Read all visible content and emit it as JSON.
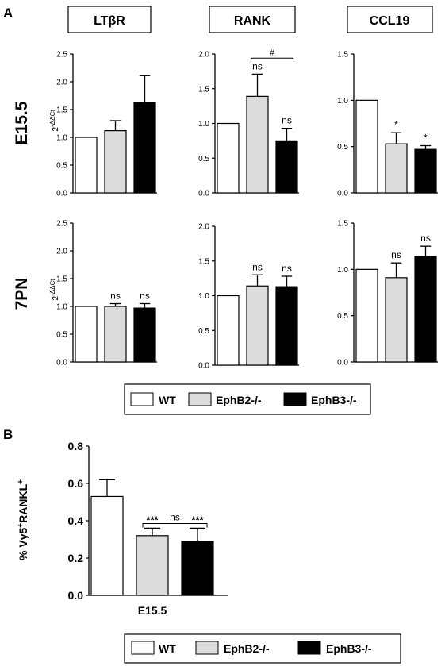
{
  "panel_labels": [
    "A",
    "B"
  ],
  "row_labels": [
    "E15.5",
    "7PN"
  ],
  "column_headers": [
    "LTβR",
    "RANK",
    "CCL19"
  ],
  "ylabel_A": "2-ΔΔCt",
  "ylabel_A_base": "2",
  "ylabel_A_sup": "-ΔΔCt",
  "legend": {
    "wt": "WT",
    "ephb2": "EphB2-/-",
    "ephb3": "EphB3-/-"
  },
  "colors": {
    "wt": "#ffffff",
    "ephb2": "#dcdcdc",
    "ephb3": "#000000"
  },
  "chart_data": [
    {
      "id": "A-E15.5-LTbR",
      "type": "bar",
      "categories": [
        "WT",
        "EphB2-/-",
        "EphB3-/-"
      ],
      "values": [
        1.0,
        1.12,
        1.63
      ],
      "errors": [
        0,
        0.18,
        0.48
      ],
      "ylim": [
        0,
        2.5
      ],
      "yticks": [
        0.0,
        0.5,
        1.0,
        1.5,
        2.0,
        2.5
      ],
      "ylabel": "2-ΔΔCt",
      "annotations": [
        "",
        "",
        ""
      ],
      "bracket": null
    },
    {
      "id": "A-E15.5-RANK",
      "type": "bar",
      "categories": [
        "WT",
        "EphB2-/-",
        "EphB3-/-"
      ],
      "values": [
        1.0,
        1.39,
        0.75
      ],
      "errors": [
        0,
        0.32,
        0.18
      ],
      "ylim": [
        0,
        2.0
      ],
      "yticks": [
        0.0,
        0.5,
        1.0,
        1.5,
        2.0
      ],
      "ylabel": "",
      "annotations": [
        "",
        "ns",
        "ns"
      ],
      "bracket": {
        "from": 1,
        "to": 2,
        "y": 1.94,
        "label": "#"
      }
    },
    {
      "id": "A-E15.5-CCL19",
      "type": "bar",
      "categories": [
        "WT",
        "EphB2-/-",
        "EphB3-/-"
      ],
      "values": [
        1.0,
        0.53,
        0.47
      ],
      "errors": [
        0,
        0.12,
        0.04
      ],
      "ylim": [
        0,
        1.5
      ],
      "yticks": [
        0.0,
        0.5,
        1.0,
        1.5
      ],
      "ylabel": "",
      "annotations": [
        "",
        "*",
        "*"
      ],
      "bracket": null
    },
    {
      "id": "A-7PN-LTbR",
      "type": "bar",
      "categories": [
        "WT",
        "EphB2-/-",
        "EphB3-/-"
      ],
      "values": [
        1.0,
        1.0,
        0.97
      ],
      "errors": [
        0,
        0.05,
        0.08
      ],
      "ylim": [
        0,
        2.5
      ],
      "yticks": [
        0.0,
        0.5,
        1.0,
        1.5,
        2.0,
        2.5
      ],
      "ylabel": "2-ΔΔCt",
      "annotations": [
        "",
        "ns",
        "ns"
      ],
      "bracket": null
    },
    {
      "id": "A-7PN-RANK",
      "type": "bar",
      "categories": [
        "WT",
        "EphB2-/-",
        "EphB3-/-"
      ],
      "values": [
        1.0,
        1.14,
        1.13
      ],
      "errors": [
        0,
        0.16,
        0.15
      ],
      "ylim": [
        0,
        2.0
      ],
      "yticks": [
        0.0,
        0.5,
        1.0,
        1.5,
        2.0
      ],
      "ylabel": "",
      "annotations": [
        "",
        "ns",
        "ns"
      ],
      "bracket": null
    },
    {
      "id": "A-7PN-CCL19",
      "type": "bar",
      "categories": [
        "WT",
        "EphB2-/-",
        "EphB3-/-"
      ],
      "values": [
        1.0,
        0.91,
        1.14
      ],
      "errors": [
        0,
        0.16,
        0.11
      ],
      "ylim": [
        0,
        1.5
      ],
      "yticks": [
        0.0,
        0.5,
        1.0,
        1.5
      ],
      "ylabel": "",
      "annotations": [
        "",
        "ns",
        "ns"
      ],
      "bracket": null
    },
    {
      "id": "B-E15.5",
      "type": "bar",
      "categories": [
        "WT",
        "EphB2-/-",
        "EphB3-/-"
      ],
      "values": [
        0.53,
        0.32,
        0.29
      ],
      "errors": [
        0.09,
        0.04,
        0.07
      ],
      "ylim": [
        0,
        0.8
      ],
      "yticks": [
        0.0,
        0.2,
        0.4,
        0.6,
        0.8
      ],
      "ylabel": "% Vγ5+RANKL+",
      "ylabel_parts": [
        "% Vγ5",
        "+",
        "RANKL",
        "+"
      ],
      "xlabel": "E15.5",
      "annotations": [
        "",
        "***",
        "***"
      ],
      "bracket": {
        "from": 1,
        "to": 2,
        "y": 0.385,
        "label": "ns"
      }
    }
  ]
}
